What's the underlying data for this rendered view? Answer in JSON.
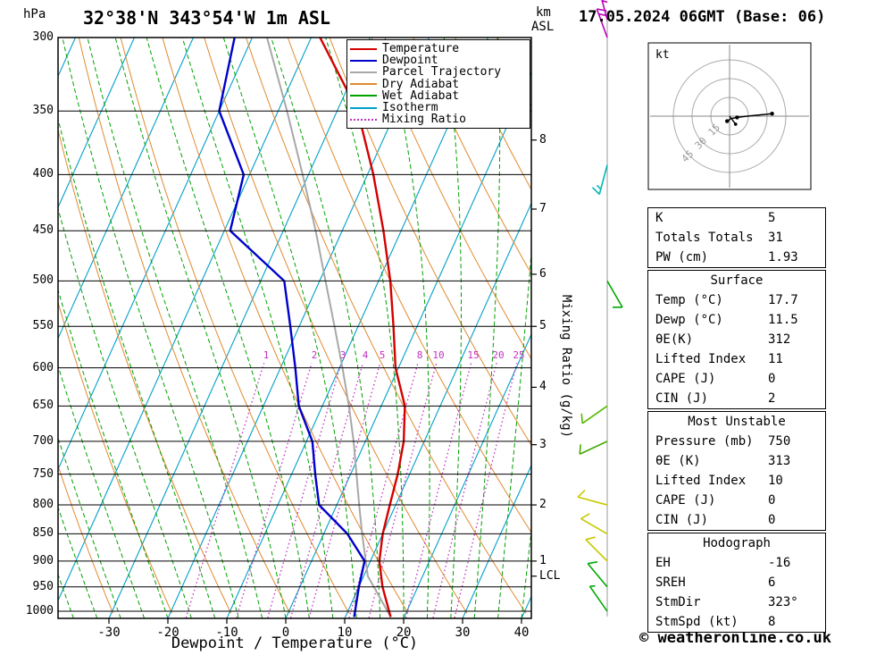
{
  "header": {
    "title": "32°38'N 343°54'W 1m ASL",
    "datetime": "17.05.2024 06GMT (Base: 06)",
    "pressure_unit": "hPa",
    "km_label": "km",
    "asl_label": "ASL"
  },
  "axes": {
    "pressure_ticks": [
      300,
      350,
      400,
      450,
      500,
      550,
      600,
      650,
      700,
      750,
      800,
      850,
      900,
      950,
      1000
    ],
    "temp_ticks": [
      -30,
      -20,
      -10,
      0,
      10,
      20,
      30,
      40
    ],
    "xlabel": "Dewpoint / Temperature (°C)",
    "mixing_axis_label": "Mixing Ratio (g/kg)",
    "lcl_label": "LCL"
  },
  "legend": [
    {
      "label": "Temperature",
      "color": "#d40000",
      "dash": "solid"
    },
    {
      "label": "Dewpoint",
      "color": "#0000cc",
      "dash": "solid"
    },
    {
      "label": "Parcel Trajectory",
      "color": "#a8a8a8",
      "dash": "solid"
    },
    {
      "label": "Dry Adiabat",
      "color": "#e08a30",
      "dash": "solid"
    },
    {
      "label": "Wet Adiabat",
      "color": "#00a000",
      "dash": "solid"
    },
    {
      "label": "Isotherm",
      "color": "#00a0c8",
      "dash": "solid"
    },
    {
      "label": "Mixing Ratio",
      "color": "#c030c0",
      "dash": "dotted"
    }
  ],
  "colors": {
    "temperature": "#d40000",
    "dewpoint": "#0000cc",
    "parcel": "#a8a8a8",
    "dry_adiabat": "#e08a30",
    "wet_adiabat": "#00a000",
    "isotherm": "#00a0c8",
    "mixing_ratio": "#c030c0",
    "grid": "#000000",
    "barb_axis": "#999999"
  },
  "chart_data": {
    "type": "line",
    "subtype": "skew-t-log-p",
    "pressure_axis": {
      "unit": "hPa",
      "range": [
        300,
        1015
      ],
      "scale": "log"
    },
    "temp_axis": {
      "unit": "°C",
      "range": [
        -40,
        40
      ]
    },
    "series": [
      {
        "name": "Parcel Trajectory",
        "color": "#a8a8a8",
        "points": [
          [
            1012,
            17.7
          ],
          [
            929,
            10.7
          ],
          [
            850,
            6.5
          ],
          [
            800,
            3.8
          ],
          [
            750,
            1
          ],
          [
            700,
            -2
          ],
          [
            650,
            -5.5
          ],
          [
            600,
            -9.5
          ],
          [
            550,
            -14
          ],
          [
            500,
            -19
          ],
          [
            450,
            -24.5
          ],
          [
            400,
            -31
          ],
          [
            350,
            -38.5
          ],
          [
            300,
            -47.5
          ]
        ]
      },
      {
        "name": "Dewpoint",
        "color": "#0000cc",
        "points": [
          [
            1012,
            11.5
          ],
          [
            950,
            10
          ],
          [
            900,
            9
          ],
          [
            850,
            4
          ],
          [
            800,
            -3
          ],
          [
            750,
            -6
          ],
          [
            700,
            -9
          ],
          [
            650,
            -14
          ],
          [
            600,
            -17.5
          ],
          [
            550,
            -21.5
          ],
          [
            500,
            -26
          ],
          [
            450,
            -39
          ],
          [
            400,
            -41
          ],
          [
            350,
            -50
          ],
          [
            300,
            -53
          ]
        ]
      },
      {
        "name": "Temperature",
        "color": "#d40000",
        "points": [
          [
            1012,
            17.7
          ],
          [
            950,
            14
          ],
          [
            900,
            11.5
          ],
          [
            850,
            10
          ],
          [
            800,
            9
          ],
          [
            750,
            8
          ],
          [
            700,
            6.5
          ],
          [
            650,
            4
          ],
          [
            600,
            -0.5
          ],
          [
            550,
            -4
          ],
          [
            500,
            -8
          ],
          [
            450,
            -13
          ],
          [
            400,
            -19
          ],
          [
            350,
            -26.5
          ],
          [
            300,
            -38.5
          ]
        ]
      }
    ],
    "mixing_ratio_lines": [
      1,
      2,
      3,
      4,
      5,
      8,
      10,
      15,
      20,
      25
    ],
    "km_ticks": [
      {
        "km": "8",
        "p": 372
      },
      {
        "km": "7",
        "p": 430
      },
      {
        "km": "6",
        "p": 493
      },
      {
        "km": "5",
        "p": 550
      },
      {
        "km": "4",
        "p": 625
      },
      {
        "km": "3",
        "p": 705
      },
      {
        "km": "2",
        "p": 800
      },
      {
        "km": "1",
        "p": 900
      }
    ],
    "lcl_pressure": 929,
    "winds": [
      {
        "p": 289,
        "dir": 345,
        "spd": 25,
        "color": "#bb00bb"
      },
      {
        "p": 300,
        "dir": 340,
        "spd": 20,
        "color": "#bb00bb"
      },
      {
        "p": 392,
        "dir": 195,
        "spd": 15,
        "color": "#00b8b8"
      },
      {
        "p": 500,
        "dir": 150,
        "spd": 10,
        "color": "#00aa00"
      },
      {
        "p": 650,
        "dir": 235,
        "spd": 12,
        "color": "#55bb00"
      },
      {
        "p": 700,
        "dir": 245,
        "spd": 10,
        "color": "#44aa00"
      },
      {
        "p": 800,
        "dir": 285,
        "spd": 8,
        "color": "#c8c800"
      },
      {
        "p": 850,
        "dir": 300,
        "spd": 10,
        "color": "#c8c800"
      },
      {
        "p": 900,
        "dir": 315,
        "spd": 10,
        "color": "#c8c800"
      },
      {
        "p": 950,
        "dir": 320,
        "spd": 8,
        "color": "#00aa00"
      },
      {
        "p": 1000,
        "dir": 325,
        "spd": 5,
        "color": "#00aa00"
      }
    ],
    "hodograph": {
      "unit": "kt",
      "rings": [
        15,
        30,
        45
      ],
      "trace_uv_kt": [
        [
          -2,
          -4
        ],
        [
          1,
          -2
        ],
        [
          6,
          -1
        ],
        [
          14,
          0
        ],
        [
          24,
          1
        ],
        [
          34,
          2
        ]
      ],
      "storm_motion_uv_kt": [
        4.8,
        -6.4
      ],
      "storm_dir": "323°",
      "storm_spd_kt": 8
    }
  },
  "tables": {
    "indices": {
      "rows": [
        [
          "K",
          "5"
        ],
        [
          "Totals Totals",
          "31"
        ],
        [
          "PW (cm)",
          "1.93"
        ]
      ]
    },
    "surface": {
      "title": "Surface",
      "rows": [
        [
          "Temp (°C)",
          "17.7"
        ],
        [
          "Dewp (°C)",
          "11.5"
        ],
        [
          "θE(K)",
          "312"
        ],
        [
          "Lifted Index",
          "11"
        ],
        [
          "CAPE (J)",
          "0"
        ],
        [
          "CIN (J)",
          "2"
        ]
      ]
    },
    "most_unstable": {
      "title": "Most Unstable",
      "rows": [
        [
          "Pressure (mb)",
          "750"
        ],
        [
          "θE (K)",
          "313"
        ],
        [
          "Lifted Index",
          "10"
        ],
        [
          "CAPE (J)",
          "0"
        ],
        [
          "CIN (J)",
          "0"
        ]
      ]
    },
    "hodograph": {
      "title": "Hodograph",
      "rows": [
        [
          "EH",
          "-16"
        ],
        [
          "SREH",
          "6"
        ],
        [
          "StmDir",
          "323°"
        ],
        [
          "StmSpd (kt)",
          "8"
        ]
      ]
    }
  },
  "footer": {
    "copyright": "© weatheronline.co.uk"
  }
}
